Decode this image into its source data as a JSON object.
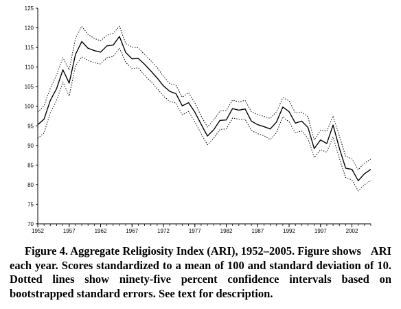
{
  "chart_data": {
    "type": "line",
    "title": "",
    "xlabel": "",
    "ylabel": "",
    "xlim": [
      1952,
      2005
    ],
    "ylim": [
      70,
      125
    ],
    "xticks": [
      "1952",
      "1957",
      "1962",
      "1967",
      "1972",
      "1977",
      "1982",
      "1987",
      "1992",
      "1997",
      "2002"
    ],
    "yticks": [
      "70",
      "75",
      "80",
      "85",
      "90",
      "95",
      "100",
      "105",
      "110",
      "115",
      "120",
      "125"
    ],
    "grid": false,
    "x": [
      1952,
      1953,
      1954,
      1955,
      1956,
      1957,
      1958,
      1959,
      1960,
      1961,
      1962,
      1963,
      1964,
      1965,
      1966,
      1967,
      1968,
      1969,
      1970,
      1971,
      1972,
      1973,
      1974,
      1975,
      1976,
      1977,
      1978,
      1979,
      1980,
      1981,
      1982,
      1983,
      1984,
      1985,
      1986,
      1987,
      1988,
      1989,
      1990,
      1991,
      1992,
      1993,
      1994,
      1995,
      1996,
      1997,
      1998,
      1999,
      2000,
      2001,
      2002,
      2003,
      2004,
      2005
    ],
    "series": [
      {
        "style": "solid",
        "values": [
          95.3,
          96.7,
          101.5,
          104.5,
          109.3,
          105.9,
          113.2,
          116.5,
          114.8,
          114.2,
          113.8,
          115.4,
          115.6,
          117.8,
          113.7,
          112.1,
          112.2,
          110.7,
          109.0,
          107.2,
          105.2,
          103.8,
          103.2,
          100.1,
          100.9,
          98.5,
          95.4,
          92.4,
          94.0,
          96.4,
          96.5,
          99.4,
          99.0,
          99.3,
          96.2,
          95.3,
          94.8,
          94.2,
          96.0,
          99.8,
          98.6,
          95.7,
          96.2,
          94.6,
          89.2,
          91.4,
          90.5,
          95.2,
          89.3,
          84.2,
          83.9,
          81.0,
          82.8,
          83.9
        ]
      },
      {
        "style": "dotted",
        "values": [
          98.5,
          100.1,
          104.6,
          108.0,
          112.4,
          109.3,
          117.3,
          120.4,
          118.3,
          117.3,
          116.7,
          118.1,
          118.6,
          120.4,
          116.0,
          115.1,
          114.9,
          113.2,
          111.6,
          109.9,
          107.6,
          105.8,
          105.3,
          102.3,
          103.5,
          100.9,
          97.5,
          94.7,
          96.5,
          98.8,
          98.9,
          101.6,
          101.1,
          101.5,
          98.6,
          97.9,
          97.4,
          96.9,
          98.6,
          102.2,
          101.4,
          98.3,
          98.5,
          97.3,
          91.4,
          93.9,
          93.6,
          97.5,
          92.4,
          87.2,
          86.6,
          83.8,
          85.5,
          86.5
        ]
      },
      {
        "style": "dotted",
        "values": [
          91.8,
          93.2,
          98.3,
          101.5,
          106.2,
          102.6,
          110.3,
          112.6,
          111.7,
          111.1,
          110.8,
          112.4,
          112.7,
          114.8,
          111.2,
          109.6,
          109.8,
          107.9,
          106.3,
          104.5,
          102.6,
          101.2,
          100.8,
          97.8,
          98.7,
          96.0,
          93.0,
          90.2,
          91.8,
          94.1,
          94.2,
          97.0,
          96.7,
          96.7,
          93.8,
          93.0,
          92.5,
          91.5,
          93.3,
          97.3,
          96.0,
          93.2,
          93.7,
          91.8,
          86.9,
          88.9,
          88.3,
          92.2,
          86.7,
          81.8,
          81.2,
          78.4,
          80.0,
          81.1
        ]
      }
    ]
  },
  "caption": {
    "first_line": "Figure 4. Aggregate Religiosity Index (ARI), 1952–2005. Figure shows",
    "rest": "ARI each year. Scores standardized to a mean of 100 and standard deviation of 10. Dotted lines show ninety-five percent confidence intervals based on bootstrapped standard errors. See text for description."
  }
}
